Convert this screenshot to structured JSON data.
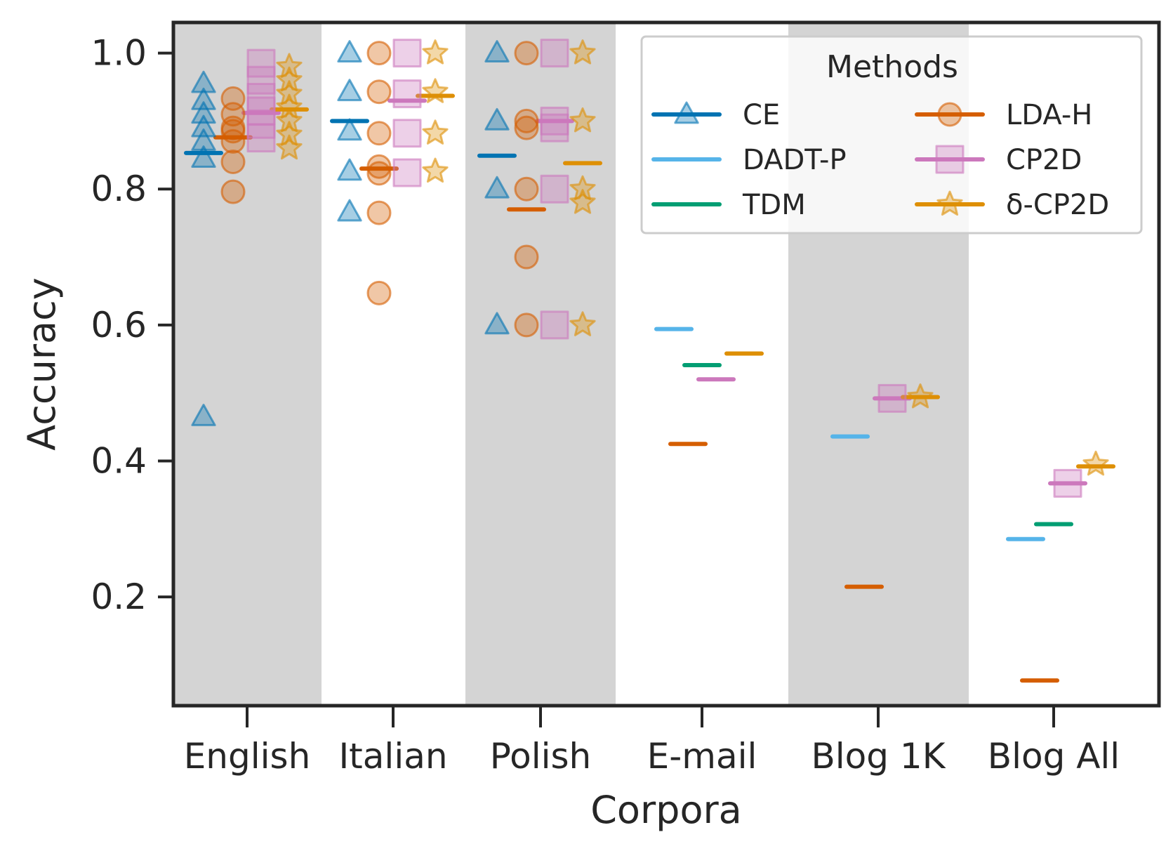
{
  "chart_data": {
    "type": "scatter",
    "xlabel": "Corpora",
    "ylabel": "Accuracy",
    "ylim": [
      0.04,
      1.045
    ],
    "yticks": [
      "1.0",
      "0.8",
      "0.6",
      "0.4",
      "0.2"
    ],
    "categories": [
      "English",
      "Italian",
      "Polish",
      "E-mail",
      "Blog 1K",
      "Blog All"
    ],
    "shaded_categories": [
      "English",
      "Polish",
      "Blog 1K"
    ],
    "grid": false,
    "legend": {
      "title": "Methods",
      "placement": "top-right",
      "columns": 2
    },
    "series": [
      {
        "name": "CE",
        "color": "#0173b2",
        "marker": "triangle",
        "means": {
          "English": 0.853,
          "Italian": 0.9,
          "Polish": 0.849
        },
        "points": {
          "English": [
            0.955,
            0.93,
            0.91,
            0.89,
            0.87,
            0.845,
            0.465
          ],
          "Italian": [
            1.0,
            0.943,
            0.885,
            0.826,
            0.766
          ],
          "Polish": [
            1.0,
            0.9,
            0.8,
            0.6
          ]
        }
      },
      {
        "name": "DADT-P",
        "color": "#56b4e9",
        "marker": "none",
        "means": {
          "E-mail": 0.594,
          "Blog 1K": 0.436,
          "Blog All": 0.285
        },
        "points": {}
      },
      {
        "name": "TDM",
        "color": "#029e73",
        "marker": "none",
        "means": {
          "E-mail": 0.541,
          "Blog All": 0.307
        },
        "points": {}
      },
      {
        "name": "LDA-H",
        "color": "#d55e00",
        "marker": "circle",
        "means": {
          "English": 0.876,
          "Italian": 0.83,
          "Polish": 0.77,
          "E-mail": 0.425,
          "Blog 1K": 0.215,
          "Blog All": 0.077
        },
        "points": {
          "English": [
            0.933,
            0.91,
            0.89,
            0.885,
            0.87,
            0.84,
            0.796
          ],
          "Italian": [
            1.0,
            0.943,
            0.882,
            0.833,
            0.823,
            0.765,
            0.647
          ],
          "Polish": [
            1.0,
            0.9,
            0.89,
            0.8,
            0.7,
            0.6
          ]
        }
      },
      {
        "name": "CP2D",
        "color": "#cc78bc",
        "marker": "square",
        "means": {
          "English": 0.912,
          "Italian": 0.93,
          "Polish": 0.9,
          "E-mail": 0.52,
          "Blog 1K": 0.492,
          "Blog All": 0.367
        },
        "points": {
          "English": [
            0.985,
            0.96,
            0.935,
            0.915,
            0.895,
            0.875
          ],
          "Italian": [
            1.0,
            0.94,
            0.882,
            0.824
          ],
          "Polish": [
            1.0,
            0.9,
            0.89,
            0.8,
            0.6
          ],
          "Blog 1K": [
            0.492
          ],
          "Blog All": [
            0.367
          ]
        }
      },
      {
        "name": "δ-CP2D",
        "color": "#de8f05",
        "marker": "star",
        "means": {
          "English": 0.917,
          "Italian": 0.937,
          "Polish": 0.838,
          "E-mail": 0.558,
          "Blog 1K": 0.494,
          "Blog All": 0.392
        },
        "points": {
          "English": [
            0.98,
            0.96,
            0.94,
            0.92,
            0.9,
            0.88,
            0.86
          ],
          "Italian": [
            1.0,
            0.943,
            0.882,
            0.826
          ],
          "Polish": [
            1.0,
            0.9,
            0.8,
            0.78,
            0.6
          ],
          "Blog 1K": [
            0.494
          ],
          "Blog All": [
            0.395
          ]
        }
      }
    ]
  }
}
